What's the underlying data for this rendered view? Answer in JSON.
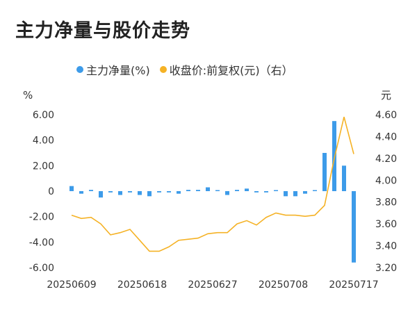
{
  "title": "主力净量与股价走势",
  "legend": {
    "bar_label": "主力净量(%)",
    "line_label": "收盘价:前复权(元)（右）",
    "bar_color": "#3d9be9",
    "line_color": "#f5b225"
  },
  "chart_data": {
    "type": "bar+line",
    "left_unit": "%",
    "right_unit": "元",
    "x_ticks": [
      "20250609",
      "20250618",
      "20250627",
      "20250708",
      "20250717"
    ],
    "left_axis": {
      "ylim": [
        -6,
        6
      ],
      "ticks": [
        "6.00",
        "4.00",
        "2.00",
        "0",
        "-2.00",
        "-4.00",
        "-6.00"
      ]
    },
    "right_axis": {
      "ylim": [
        3.2,
        4.6
      ],
      "ticks": [
        "4.60",
        "4.40",
        "4.20",
        "4.00",
        "3.80",
        "3.60",
        "3.40",
        "3.20"
      ]
    },
    "series": [
      {
        "name": "主力净量(%)",
        "axis": "left",
        "type": "bar",
        "values": [
          0.4,
          -0.2,
          0.1,
          -0.5,
          -0.1,
          -0.3,
          -0.1,
          -0.3,
          -0.4,
          -0.1,
          -0.1,
          -0.2,
          0.1,
          0.1,
          0.3,
          0.0,
          -0.3,
          0.1,
          0.2,
          -0.1,
          -0.1,
          0.0,
          -0.4,
          -0.4,
          -0.2,
          0.0,
          3.0,
          5.5,
          2.0,
          -5.6
        ]
      },
      {
        "name": "收盘价:前复权(元)（右）",
        "axis": "right",
        "type": "line",
        "values": [
          3.68,
          3.65,
          3.66,
          3.6,
          3.5,
          3.52,
          3.55,
          3.45,
          3.35,
          3.35,
          3.39,
          3.45,
          3.46,
          3.47,
          3.51,
          3.52,
          3.52,
          3.6,
          3.63,
          3.59,
          3.66,
          3.7,
          3.68,
          3.68,
          3.67,
          3.68,
          3.77,
          4.2,
          4.58,
          4.24
        ]
      }
    ]
  }
}
